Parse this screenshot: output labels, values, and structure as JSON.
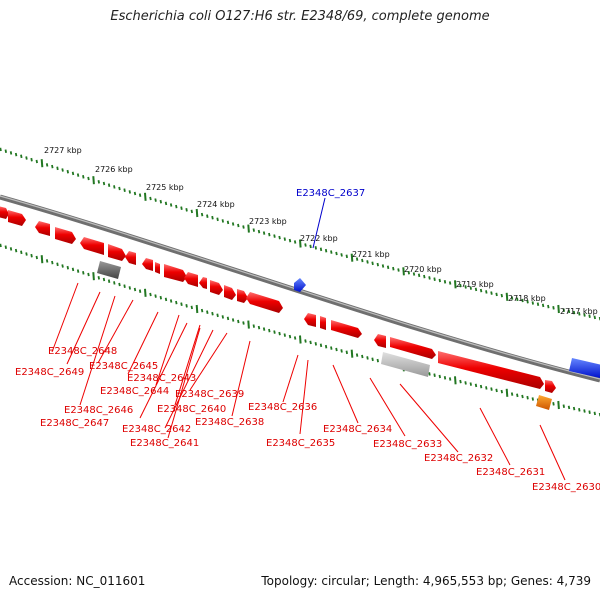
{
  "title": "Escherichia coli O127:H6 str. E2348/69, complete genome",
  "footer": {
    "accession": "Accession: NC_011601",
    "summary": "Topology: circular; Length: 4,965,553 bp; Genes: 4,739"
  },
  "ruler": {
    "labels": [
      "2727 kbp",
      "2726 kbp",
      "2725 kbp",
      "2724 kbp",
      "2723 kbp",
      "2722 kbp",
      "2721 kbp",
      "2720 kbp",
      "2719 kbp",
      "2718 kbp",
      "2717 kbp"
    ]
  },
  "colors": {
    "gene": "#ee0000",
    "gene_label": "#dd0000",
    "highlight_gene": "#0000dd",
    "backbone": "#777777",
    "tick": "#227722",
    "pseudo_dark": "#555555",
    "pseudo_light": "#bbbbbb",
    "orange": "#ee7700",
    "blue_feature": "#0022ee"
  },
  "genes": [
    "E2348C_2637",
    "E2348C_2648",
    "E2348C_2649",
    "E2348C_2645",
    "E2348C_2643",
    "E2348C_2644",
    "E2348C_2646",
    "E2348C_2647",
    "E2348C_2640",
    "E2348C_2639",
    "E2348C_2642",
    "E2348C_2638",
    "E2348C_2641",
    "E2348C_2636",
    "E2348C_2635",
    "E2348C_2634",
    "E2348C_2633",
    "E2348C_2632",
    "E2348C_2631",
    "E2348C_2630"
  ]
}
